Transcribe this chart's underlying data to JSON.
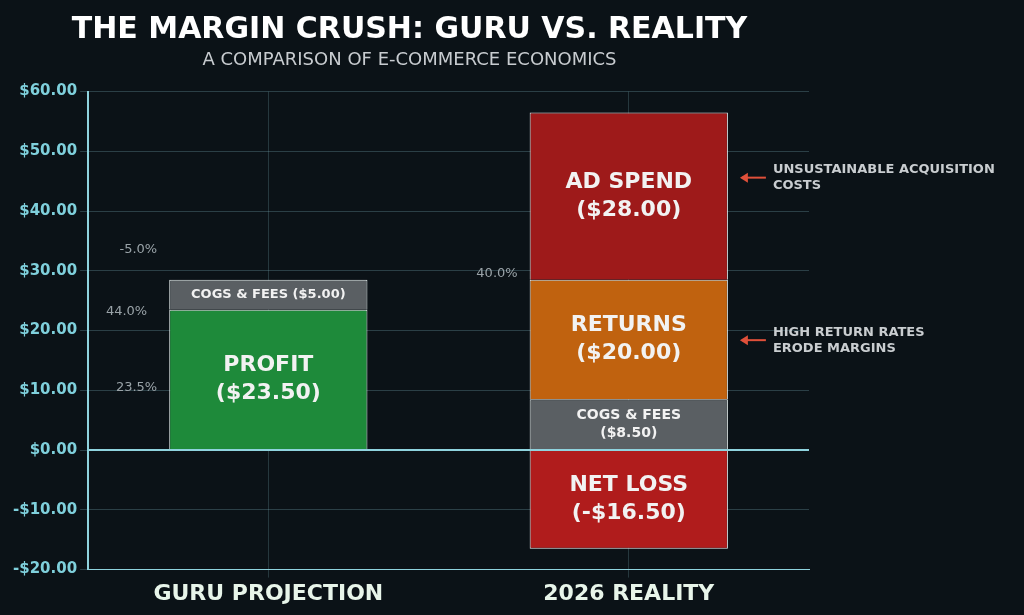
{
  "chart_data": {
    "type": "bar",
    "stacked": true,
    "title": "THE MARGIN CRUSH: GURU VS. REALITY",
    "subtitle": "A COMPARISON OF E-COMMERCE ECONOMICS",
    "categories": [
      "GURU PROJECTION",
      "2026 REALITY"
    ],
    "series": [
      {
        "name": "PROFIT",
        "color": "#1e8a3a",
        "values": [
          23.5,
          null
        ],
        "value_labels": [
          "($23.50)",
          null
        ]
      },
      {
        "name": "COGS & FEES",
        "color": "#5a5f63",
        "values": [
          5,
          8.5
        ],
        "value_labels": [
          "($5.00)",
          "($8.50)"
        ]
      },
      {
        "name": "RETURNS",
        "color": "#c0620f",
        "values": [
          null,
          20
        ],
        "value_labels": [
          null,
          "($20.00)"
        ]
      },
      {
        "name": "AD SPEND",
        "color": "#9e1a1a",
        "values": [
          null,
          28
        ],
        "value_labels": [
          null,
          "($28.00)"
        ]
      },
      {
        "name": "NET LOSS",
        "color": "#b01c1c",
        "values": [
          null,
          -16.5
        ],
        "value_labels": [
          null,
          "(-$16.50)"
        ]
      }
    ],
    "ylim": [
      -20,
      60
    ],
    "yticks": [
      {
        "value": -20,
        "label": "-$20.00"
      },
      {
        "value": -10,
        "label": "-$10.00"
      },
      {
        "value": 0,
        "label": "$0.00"
      },
      {
        "value": 10,
        "label": "$10.00"
      },
      {
        "value": 20,
        "label": "$20.00"
      },
      {
        "value": 30,
        "label": "$30.00"
      },
      {
        "value": 40,
        "label": "$40.00"
      },
      {
        "value": 50,
        "label": "$50.00"
      },
      {
        "value": 60,
        "label": "$60.00"
      }
    ],
    "grid": true,
    "legend": false,
    "ref_lines": [
      {
        "axis": "y",
        "value": 0,
        "color": "#8fd3de"
      }
    ],
    "annotations": [
      "44.0%",
      "-5.0%",
      "23.5%",
      "40.0%",
      "UNSUSTAINABLE ACQUISITION COSTS",
      "HIGH RETURN RATES ERODE MARGINS"
    ]
  }
}
